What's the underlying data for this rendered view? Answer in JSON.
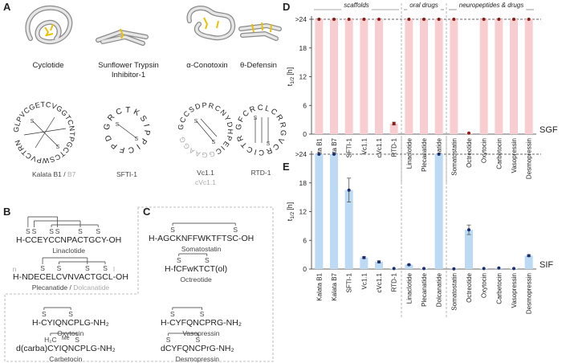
{
  "panel_labels": [
    "A",
    "B",
    "C",
    "D",
    "E"
  ],
  "bridge_label": "S",
  "scaffolds": [
    {
      "name": [
        "Cyclotide"
      ]
    },
    {
      "name": [
        "Sunflower Trypsin",
        "Inhibitor-1"
      ]
    },
    {
      "name": [
        "α-Conotoxin"
      ]
    },
    {
      "name": [
        "θ-Defensin"
      ]
    }
  ],
  "cyclic_peptides": [
    {
      "sequence": "GLPVCGETCVGGTCNTPGCTCSWPVCTRN",
      "label": "Kalata B1 /",
      "variant": "B7"
    },
    {
      "sequence": "GRCTKSIPPICFPD",
      "label": "SFTI-1"
    },
    {
      "sequence": "GCCSDPRCNYDHPEIC",
      "linker": "GGAAGG",
      "label": "Vc1.1",
      "variant": "cVc1.1"
    },
    {
      "sequence": "GFCRCLCRRGVCRCICTR",
      "label": "RTD-1"
    }
  ],
  "linear_peptides": {
    "linaclotide": {
      "sequence": "H-CCEYCCNPACTGCY-OH",
      "label": "Linaclotide"
    },
    "plecanatide": {
      "sequence": "H-NDECELCVNVACTGCL-OH",
      "label": "Plecanatide /",
      "variant": "Dolcanatide",
      "variant_marks": [
        "n",
        "l"
      ]
    },
    "oxytocin": {
      "sequence": "H-CYIQNCPLG-NH₂",
      "label": "Oxytocin"
    },
    "carbetocin": {
      "sequence": "d(carba)CYIQNCPLG-NH₂",
      "label": "Carbetocin",
      "bridge_labels": [
        "H₂C",
        "Me"
      ]
    },
    "somatostatin": {
      "sequence": "H-AGCKNFFWKTFTSC-OH",
      "label": "Somatostatin"
    },
    "octreotide": {
      "sequence": "H-fCFwKTCT(ol)",
      "label": "Octreotide"
    },
    "vasopressin": {
      "sequence": "H-CYFQNCPRG-NH₂",
      "label": "Vasopressin"
    },
    "desmopressin": {
      "sequence": "dCYFQNCPrG-NH₂",
      "label": "Desmopressin"
    }
  },
  "chart_data": [
    {
      "type": "bar",
      "side_label": "SGF",
      "ylabel": {
        "symbol": "t",
        "subscript": "1/2",
        "unit": "[h]"
      },
      "categories": [
        "Kalata B1",
        "Kalata B7",
        "SFTI-1",
        "Vc1.1",
        "cVc1.1",
        "RTD-1",
        "Linaclotide",
        "Plecanatide",
        "Dolcanatide",
        "Somatostatin",
        "Octreotide",
        "Oxytocin",
        "Carbetocin",
        "Vasopressin",
        "Desmopressin"
      ],
      "values": [
        24,
        24,
        24,
        24,
        24,
        2.2,
        24,
        24,
        24,
        24,
        0.2,
        24,
        24,
        24,
        24
      ],
      "errors": [
        null,
        null,
        null,
        null,
        null,
        0.3,
        null,
        null,
        null,
        null,
        null,
        null,
        null,
        null,
        null
      ],
      "color": "#f8cdd0",
      "point_color": "#8b1a1a",
      "groups": [
        {
          "label": "scaffolds",
          "size": 6
        },
        {
          "label": "oral drugs",
          "size": 3
        },
        {
          "label": "neuropeptides & drugs",
          "size": 6
        }
      ],
      "ylim": [
        0,
        24
      ],
      "yticks": [
        0,
        6,
        12,
        18,
        {
          "value": 24,
          "label": ">24"
        }
      ]
    },
    {
      "type": "bar",
      "side_label": "SIF",
      "ylabel": {
        "symbol": "t",
        "subscript": "1/2",
        "unit": "[h]"
      },
      "categories": [
        "Kalata B1",
        "Kalata B7",
        "SFTI-1",
        "Vc1.1",
        "cVc1.1",
        "RTD-1",
        "Linaclotide",
        "Plecanatide",
        "Dolcanatide",
        "Somatostatin",
        "Octreotide",
        "Oxytocin",
        "Carbetocin",
        "Vasopressin",
        "Desmopressin"
      ],
      "values": [
        24,
        24,
        16.5,
        2.4,
        1.5,
        0.1,
        0.9,
        0.1,
        24,
        0.05,
        8.2,
        0.1,
        0.2,
        0.1,
        2.8
      ],
      "errors": [
        null,
        null,
        2.5,
        0.2,
        0.2,
        null,
        0.1,
        null,
        null,
        null,
        1,
        null,
        null,
        null,
        0.2
      ],
      "color": "#bcdaf3",
      "point_color": "#1c2d6e",
      "groups": [
        {
          "size": 6
        },
        {
          "size": 3
        },
        {
          "size": 6
        }
      ],
      "ylim": [
        0,
        24
      ],
      "yticks": [
        0,
        6,
        12,
        18,
        {
          "value": 24,
          "label": ">24"
        }
      ]
    }
  ]
}
